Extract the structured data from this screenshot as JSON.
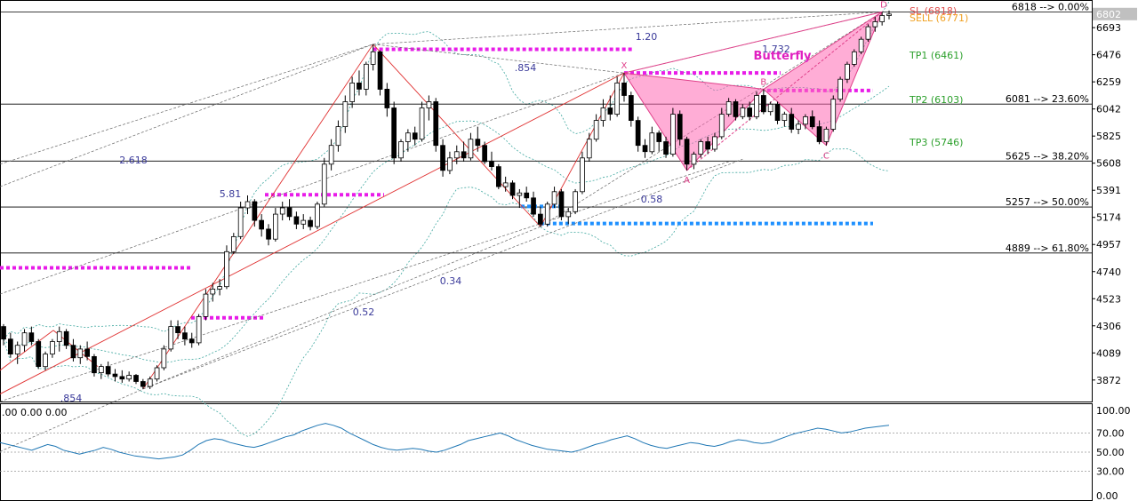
{
  "chart_data": [
    {
      "type": "candlestick",
      "title": "",
      "xlabel": "",
      "ylabel": "",
      "grid": false,
      "ylim": [
        3700,
        6900
      ],
      "y_ticks": [
        "6693",
        "6476",
        "6259",
        "6042",
        "5825",
        "5608",
        "5391",
        "5174",
        "4957",
        "4740",
        "4523",
        "4306",
        "4089",
        "3872"
      ],
      "current_price": "6802",
      "fib_levels": [
        {
          "value": 6818,
          "label": "6818 --> 0.00%"
        },
        {
          "value": 6081,
          "label": "6081 --> 23.60%"
        },
        {
          "value": 5625,
          "label": "5625 --> 38.20%"
        },
        {
          "value": 5257,
          "label": "5257 --> 50.00%"
        },
        {
          "value": 4889,
          "label": "4889 --> 61.80%"
        }
      ],
      "trade_levels": [
        {
          "label": "SL (6818)",
          "color": "#e05050"
        },
        {
          "label": "SELL (6771)",
          "color": "#f0a020"
        },
        {
          "label": "TP1 (6461)",
          "color": "#2ca02c"
        },
        {
          "label": "TP2 (6103)",
          "color": "#2ca02c"
        },
        {
          "label": "TP3 (5746)",
          "color": "#2ca02c"
        }
      ],
      "pattern_name": "Butterfly",
      "pattern_points": [
        {
          "label": "X",
          "value": 6330
        },
        {
          "label": "A",
          "value": 5550
        },
        {
          "label": "B",
          "value": 6180
        },
        {
          "label": "C",
          "value": 5750
        },
        {
          "label": "D",
          "value": 6818
        }
      ],
      "ratio_labels": [
        "1.20",
        "1.732",
        ".854",
        "2.618",
        "5.81",
        "0.58",
        "0.34",
        "0.52",
        ".854"
      ],
      "colors": {
        "pattern_fill": "#ff69b4",
        "pattern_line": "#e0408a",
        "magenta_level": "#e81ce8",
        "blue_level": "#1e90ff",
        "trend_line": "#e03030",
        "band": "#40a8a0",
        "ratio_text": "#3a3a9a",
        "up_candle": "#ffffff",
        "down_candle": "#000000"
      },
      "candles": [
        [
          4300,
          4320,
          4150,
          4200
        ],
        [
          4200,
          4250,
          4050,
          4080
        ],
        [
          4080,
          4180,
          4000,
          4150
        ],
        [
          4150,
          4280,
          4100,
          4250
        ],
        [
          4250,
          4300,
          4150,
          4180
        ],
        [
          4180,
          4200,
          3960,
          3980
        ],
        [
          3980,
          4100,
          3950,
          4080
        ],
        [
          4080,
          4200,
          4050,
          4180
        ],
        [
          4180,
          4300,
          4100,
          4260
        ],
        [
          4260,
          4280,
          4120,
          4150
        ],
        [
          4150,
          4200,
          4020,
          4050
        ],
        [
          4050,
          4150,
          4000,
          4120
        ],
        [
          4120,
          4180,
          4030,
          4060
        ],
        [
          4060,
          4080,
          3900,
          3930
        ],
        [
          3930,
          4000,
          3880,
          3980
        ],
        [
          3980,
          4020,
          3900,
          3920
        ],
        [
          3920,
          3960,
          3860,
          3900
        ],
        [
          3900,
          3950,
          3850,
          3880
        ],
        [
          3880,
          3940,
          3860,
          3910
        ],
        [
          3910,
          3920,
          3840,
          3860
        ],
        [
          3860,
          3880,
          3800,
          3820
        ],
        [
          3820,
          3900,
          3800,
          3880
        ],
        [
          3880,
          3990,
          3860,
          3970
        ],
        [
          3970,
          4150,
          3950,
          4120
        ],
        [
          4120,
          4350,
          4100,
          4300
        ],
        [
          4300,
          4350,
          4200,
          4250
        ],
        [
          4250,
          4300,
          4150,
          4200
        ],
        [
          4200,
          4250,
          4130,
          4170
        ],
        [
          4170,
          4400,
          4150,
          4380
        ],
        [
          4380,
          4600,
          4350,
          4560
        ],
        [
          4560,
          4650,
          4500,
          4600
        ],
        [
          4600,
          4680,
          4550,
          4620
        ],
        [
          4620,
          4950,
          4600,
          4900
        ],
        [
          4900,
          5050,
          4880,
          5020
        ],
        [
          5020,
          5300,
          5000,
          5250
        ],
        [
          5250,
          5350,
          5200,
          5300
        ],
        [
          5300,
          5320,
          5100,
          5150
        ],
        [
          5150,
          5200,
          5020,
          5080
        ],
        [
          5080,
          5120,
          4950,
          5000
        ],
        [
          5000,
          5250,
          4980,
          5200
        ],
        [
          5200,
          5300,
          5150,
          5250
        ],
        [
          5250,
          5320,
          5150,
          5180
        ],
        [
          5180,
          5220,
          5080,
          5120
        ],
        [
          5120,
          5200,
          5080,
          5150
        ],
        [
          5150,
          5180,
          5070,
          5100
        ],
        [
          5100,
          5300,
          5080,
          5280
        ],
        [
          5280,
          5650,
          5260,
          5600
        ],
        [
          5600,
          5800,
          5550,
          5750
        ],
        [
          5750,
          5950,
          5700,
          5900
        ],
        [
          5900,
          6150,
          5850,
          6100
        ],
        [
          6100,
          6300,
          6050,
          6250
        ],
        [
          6250,
          6350,
          6150,
          6200
        ],
        [
          6200,
          6420,
          6150,
          6400
        ],
        [
          6400,
          6560,
          6350,
          6500
        ],
        [
          6500,
          6510,
          6150,
          6200
        ],
        [
          6200,
          6250,
          5980,
          6050
        ],
        [
          6050,
          6100,
          5600,
          5650
        ],
        [
          5650,
          5800,
          5620,
          5780
        ],
        [
          5780,
          5880,
          5700,
          5850
        ],
        [
          5850,
          5900,
          5750,
          5800
        ],
        [
          5800,
          6100,
          5780,
          6050
        ],
        [
          6050,
          6150,
          5950,
          6100
        ],
        [
          6100,
          6130,
          5700,
          5750
        ],
        [
          5750,
          5800,
          5500,
          5550
        ],
        [
          5550,
          5700,
          5520,
          5650
        ],
        [
          5650,
          5750,
          5600,
          5700
        ],
        [
          5700,
          5780,
          5620,
          5650
        ],
        [
          5650,
          5850,
          5630,
          5800
        ],
        [
          5800,
          5900,
          5700,
          5750
        ],
        [
          5750,
          5780,
          5600,
          5620
        ],
        [
          5620,
          5700,
          5550,
          5580
        ],
        [
          5580,
          5600,
          5400,
          5420
        ],
        [
          5420,
          5500,
          5380,
          5450
        ],
        [
          5450,
          5470,
          5320,
          5350
        ],
        [
          5350,
          5400,
          5250,
          5370
        ],
        [
          5370,
          5420,
          5300,
          5330
        ],
        [
          5330,
          5380,
          5180,
          5200
        ],
        [
          5200,
          5260,
          5100,
          5120
        ],
        [
          5120,
          5300,
          5100,
          5280
        ],
        [
          5280,
          5420,
          5250,
          5380
        ],
        [
          5380,
          5400,
          5150,
          5180
        ],
        [
          5180,
          5250,
          5120,
          5220
        ],
        [
          5220,
          5400,
          5200,
          5380
        ],
        [
          5380,
          5700,
          5360,
          5650
        ],
        [
          5650,
          5850,
          5620,
          5800
        ],
        [
          5800,
          6000,
          5780,
          5950
        ],
        [
          5950,
          6120,
          5900,
          6050
        ],
        [
          6050,
          6150,
          5950,
          6000
        ],
        [
          6000,
          6300,
          5980,
          6250
        ],
        [
          6250,
          6330,
          6100,
          6150
        ],
        [
          6150,
          6180,
          5900,
          5950
        ],
        [
          5950,
          5980,
          5700,
          5750
        ],
        [
          5750,
          5800,
          5650,
          5700
        ],
        [
          5700,
          5900,
          5680,
          5850
        ],
        [
          5850,
          5870,
          5700,
          5780
        ],
        [
          5780,
          5820,
          5650,
          5680
        ],
        [
          5680,
          6050,
          5660,
          6000
        ],
        [
          6000,
          6030,
          5750,
          5800
        ],
        [
          5800,
          5820,
          5550,
          5600
        ],
        [
          5600,
          5700,
          5560,
          5680
        ],
        [
          5680,
          5800,
          5650,
          5780
        ],
        [
          5780,
          5820,
          5680,
          5720
        ],
        [
          5720,
          5850,
          5700,
          5820
        ],
        [
          5820,
          6050,
          5800,
          6000
        ],
        [
          6000,
          6130,
          5980,
          6100
        ],
        [
          6100,
          6120,
          5950,
          5980
        ],
        [
          5980,
          6080,
          5960,
          6050
        ],
        [
          6050,
          6100,
          5950,
          5980
        ],
        [
          5980,
          6180,
          5960,
          6150
        ],
        [
          6150,
          6200,
          6000,
          6020
        ],
        [
          6020,
          6100,
          5990,
          6080
        ],
        [
          6080,
          6100,
          5920,
          5950
        ],
        [
          5950,
          6020,
          5900,
          6000
        ],
        [
          6000,
          6050,
          5850,
          5880
        ],
        [
          5880,
          5950,
          5840,
          5920
        ],
        [
          5920,
          6000,
          5880,
          5980
        ],
        [
          5980,
          6030,
          5880,
          5900
        ],
        [
          5900,
          5950,
          5760,
          5780
        ],
        [
          5780,
          5900,
          5750,
          5880
        ],
        [
          5880,
          6150,
          5860,
          6120
        ],
        [
          6120,
          6300,
          6100,
          6280
        ],
        [
          6280,
          6420,
          6250,
          6400
        ],
        [
          6400,
          6520,
          6380,
          6500
        ],
        [
          6500,
          6620,
          6480,
          6600
        ],
        [
          6600,
          6720,
          6580,
          6700
        ],
        [
          6700,
          6780,
          6660,
          6740
        ],
        [
          6740,
          6818,
          6710,
          6790
        ],
        [
          6790,
          6830,
          6760,
          6802
        ]
      ]
    },
    {
      "type": "line",
      "title": "",
      "readout": ".00 0.00 0.00",
      "ylim": [
        0,
        100
      ],
      "y_ticks": [
        "100.00",
        "70.00",
        "50.00",
        "30.00",
        "0.00"
      ],
      "series": [
        {
          "values": [
            60,
            58,
            56,
            54,
            52,
            55,
            58,
            56,
            52,
            50,
            48,
            50,
            52,
            55,
            53,
            50,
            48,
            46,
            45,
            44,
            43,
            44,
            45,
            47,
            52,
            58,
            62,
            64,
            63,
            60,
            58,
            56,
            55,
            57,
            60,
            63,
            66,
            68,
            72,
            75,
            78,
            80,
            78,
            75,
            70,
            66,
            62,
            58,
            55,
            53,
            52,
            53,
            54,
            53,
            51,
            50,
            52,
            55,
            58,
            62,
            64,
            66,
            68,
            70,
            67,
            63,
            60,
            57,
            55,
            53,
            52,
            51,
            50,
            52,
            55,
            58,
            60,
            63,
            65,
            67,
            64,
            60,
            57,
            55,
            54,
            56,
            58,
            60,
            59,
            57,
            56,
            58,
            61,
            63,
            62,
            60,
            59,
            60,
            63,
            66,
            69,
            71,
            73,
            75,
            74,
            72,
            70,
            71,
            73,
            75,
            76,
            77,
            78
          ]
        }
      ]
    }
  ]
}
